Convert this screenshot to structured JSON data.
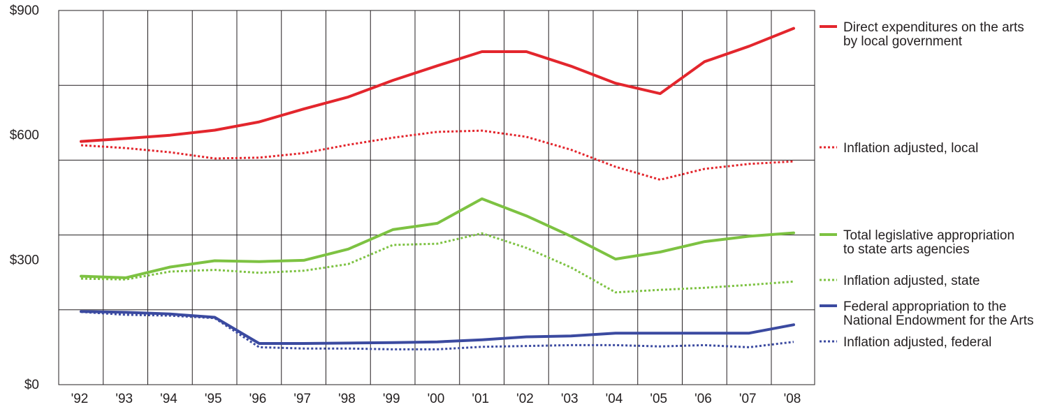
{
  "chart_data": {
    "type": "line",
    "categories": [
      "'92",
      "'93",
      "'94",
      "'95",
      "'96",
      "'97",
      "'98",
      "'99",
      "'00",
      "'01",
      "'02",
      "'03",
      "'04",
      "'05",
      "'06",
      "'07",
      "'08"
    ],
    "y_tick_labels": [
      "$0",
      "$300",
      "$600",
      "$900"
    ],
    "y_ticks": [
      0,
      300,
      600,
      900
    ],
    "ylim": [
      0,
      900
    ],
    "grid": true,
    "legend_position": "right",
    "colors": {
      "red": "#e3262d",
      "green": "#7dc242",
      "blue": "#3b4aa0"
    },
    "series": [
      {
        "name": "Direct expenditures on the arts by local government",
        "color": "red",
        "style": "solid",
        "values": [
          585,
          592,
          600,
          612,
          632,
          663,
          692,
          732,
          767,
          801,
          801,
          766,
          725,
          700,
          777,
          814,
          857
        ]
      },
      {
        "name": "Inflation adjusted, local",
        "color": "red",
        "style": "dotted",
        "values": [
          576,
          569,
          559,
          544,
          546,
          557,
          577,
          594,
          608,
          611,
          596,
          565,
          524,
          493,
          519,
          531,
          537
        ]
      },
      {
        "name": "Total legislative appropriation to state arts agencies",
        "color": "green",
        "style": "solid",
        "values": [
          261,
          257,
          283,
          298,
          296,
          299,
          326,
          373,
          388,
          447,
          406,
          357,
          302,
          319,
          344,
          357,
          365
        ]
      },
      {
        "name": "Inflation adjusted, state",
        "color": "green",
        "style": "dotted",
        "values": [
          255,
          253,
          272,
          276,
          269,
          274,
          290,
          336,
          339,
          364,
          329,
          282,
          222,
          228,
          233,
          240,
          248
        ]
      },
      {
        "name": "Federal appropriation to the National Endowment for the Arts",
        "color": "blue",
        "style": "solid",
        "values": [
          176,
          174,
          170,
          162,
          99,
          99,
          100,
          101,
          103,
          108,
          115,
          117,
          124,
          124,
          124,
          124,
          144
        ]
      },
      {
        "name": "Inflation adjusted, federal",
        "color": "blue",
        "style": "dotted",
        "values": [
          175,
          168,
          166,
          160,
          90,
          87,
          87,
          85,
          85,
          91,
          93,
          95,
          95,
          92,
          95,
          90,
          103
        ]
      }
    ],
    "legend": [
      {
        "lines": [
          "Direct expenditures on the arts",
          "by local government"
        ],
        "series": 0
      },
      {
        "lines": [
          "Inflation adjusted, local"
        ],
        "series": 1
      },
      {
        "lines": [
          "Total legislative appropriation",
          "to state arts agencies"
        ],
        "series": 2
      },
      {
        "lines": [
          "Inflation adjusted, state"
        ],
        "series": 3
      },
      {
        "lines": [
          "Federal appropriation to the",
          "National Endowment for the Arts"
        ],
        "series": 4
      },
      {
        "lines": [
          "Inflation adjusted, federal"
        ],
        "series": 5
      }
    ]
  }
}
